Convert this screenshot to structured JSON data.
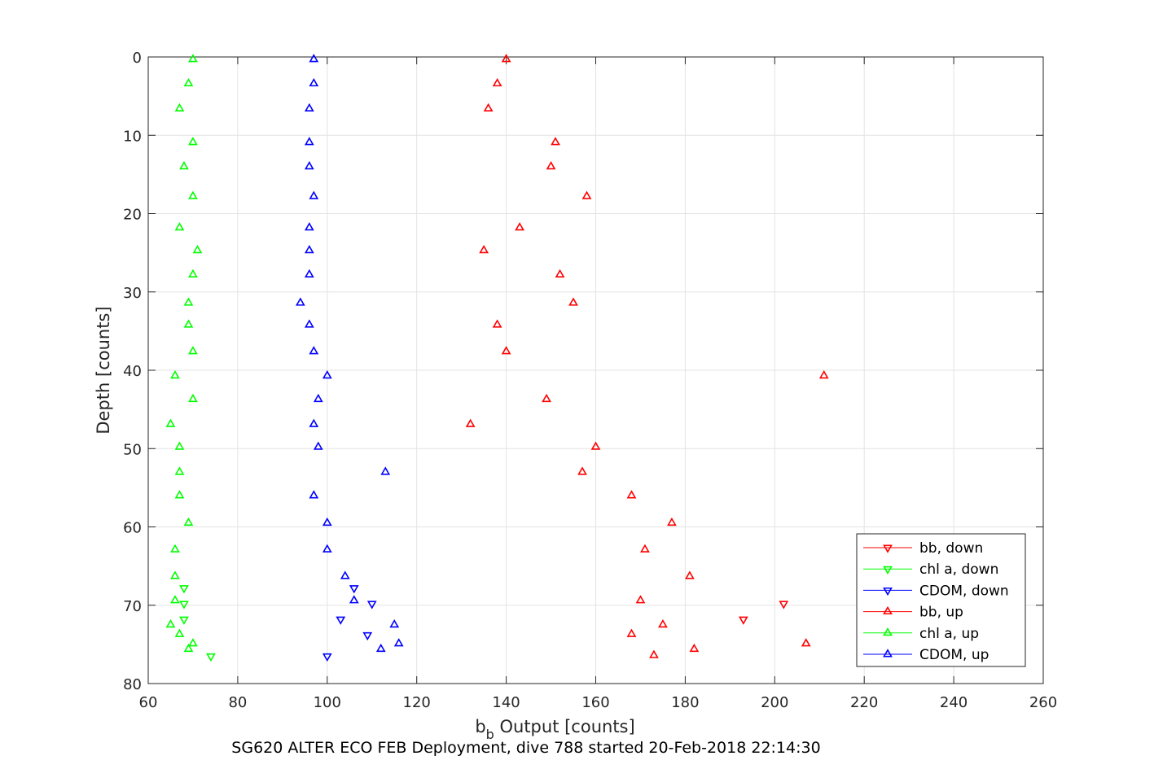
{
  "chart_data": {
    "type": "scatter",
    "caption": "SG620 ALTER ECO FEB Deployment, dive 788 started 20-Feb-2018 22:14:30",
    "xlabel_main": "b",
    "xlabel_sub": "b",
    "xlabel_rest": " Output [counts]",
    "ylabel": "Depth [counts]",
    "xlim": [
      60,
      260
    ],
    "ylim": [
      0,
      80
    ],
    "y_reversed": true,
    "grid": true,
    "legend_placement": "bottom-right",
    "x_ticks": [
      60,
      80,
      100,
      120,
      140,
      160,
      180,
      200,
      220,
      240,
      260
    ],
    "y_ticks": [
      0,
      10,
      20,
      30,
      40,
      50,
      60,
      70,
      80
    ],
    "series": [
      {
        "name": "bb, down",
        "color": "#ff0000",
        "marker": "triangle-down",
        "points": [
          [
            202,
            69.8
          ],
          [
            193,
            71.8
          ]
        ]
      },
      {
        "name": "chl a, down",
        "color": "#00ff00",
        "marker": "triangle-down",
        "points": [
          [
            68,
            67.8
          ],
          [
            68,
            69.8
          ],
          [
            68,
            71.8
          ],
          [
            74,
            76.5
          ]
        ]
      },
      {
        "name": "CDOM, down",
        "color": "#0000ff",
        "marker": "triangle-down",
        "points": [
          [
            106,
            67.8
          ],
          [
            110,
            69.8
          ],
          [
            103,
            71.8
          ],
          [
            109,
            73.8
          ],
          [
            100,
            76.5
          ]
        ]
      },
      {
        "name": "bb, up",
        "color": "#ff0000",
        "marker": "triangle-up",
        "points": [
          [
            140,
            0.3
          ],
          [
            138,
            3.4
          ],
          [
            136,
            6.6
          ],
          [
            151,
            10.9
          ],
          [
            150,
            14.0
          ],
          [
            158,
            17.8
          ],
          [
            143,
            21.8
          ],
          [
            135,
            24.7
          ],
          [
            152,
            27.8
          ],
          [
            155,
            31.4
          ],
          [
            138,
            34.2
          ],
          [
            140,
            37.6
          ],
          [
            211,
            40.7
          ],
          [
            149,
            43.7
          ],
          [
            132,
            46.9
          ],
          [
            160,
            49.8
          ],
          [
            157,
            53.0
          ],
          [
            168,
            56.0
          ],
          [
            177,
            59.5
          ],
          [
            171,
            62.9
          ],
          [
            181,
            66.3
          ],
          [
            170,
            69.4
          ],
          [
            175,
            72.5
          ],
          [
            168,
            73.7
          ],
          [
            207,
            74.9
          ],
          [
            182,
            75.6
          ],
          [
            173,
            76.4
          ]
        ]
      },
      {
        "name": "chl a, up",
        "color": "#00ff00",
        "marker": "triangle-up",
        "points": [
          [
            70,
            0.3
          ],
          [
            69,
            3.4
          ],
          [
            67,
            6.6
          ],
          [
            70,
            10.9
          ],
          [
            68,
            14.0
          ],
          [
            70,
            17.8
          ],
          [
            67,
            21.8
          ],
          [
            71,
            24.7
          ],
          [
            70,
            27.8
          ],
          [
            69,
            31.4
          ],
          [
            69,
            34.2
          ],
          [
            70,
            37.6
          ],
          [
            66,
            40.7
          ],
          [
            70,
            43.7
          ],
          [
            65,
            46.9
          ],
          [
            67,
            49.8
          ],
          [
            67,
            53.0
          ],
          [
            67,
            56.0
          ],
          [
            69,
            59.5
          ],
          [
            66,
            62.9
          ],
          [
            66,
            66.3
          ],
          [
            66,
            69.4
          ],
          [
            65,
            72.5
          ],
          [
            67,
            73.7
          ],
          [
            70,
            74.9
          ],
          [
            69,
            75.6
          ]
        ]
      },
      {
        "name": "CDOM, up",
        "color": "#0000ff",
        "marker": "triangle-up",
        "points": [
          [
            97,
            0.3
          ],
          [
            97,
            3.4
          ],
          [
            96,
            6.6
          ],
          [
            96,
            10.9
          ],
          [
            96,
            14.0
          ],
          [
            97,
            17.8
          ],
          [
            96,
            21.8
          ],
          [
            96,
            24.7
          ],
          [
            96,
            27.8
          ],
          [
            94,
            31.4
          ],
          [
            96,
            34.2
          ],
          [
            97,
            37.6
          ],
          [
            100,
            40.7
          ],
          [
            98,
            43.7
          ],
          [
            97,
            46.9
          ],
          [
            98,
            49.8
          ],
          [
            113,
            53.0
          ],
          [
            97,
            56.0
          ],
          [
            100,
            59.5
          ],
          [
            100,
            62.9
          ],
          [
            104,
            66.3
          ],
          [
            106,
            69.4
          ],
          [
            115,
            72.5
          ],
          [
            116,
            74.9
          ],
          [
            112,
            75.6
          ]
        ]
      }
    ]
  }
}
